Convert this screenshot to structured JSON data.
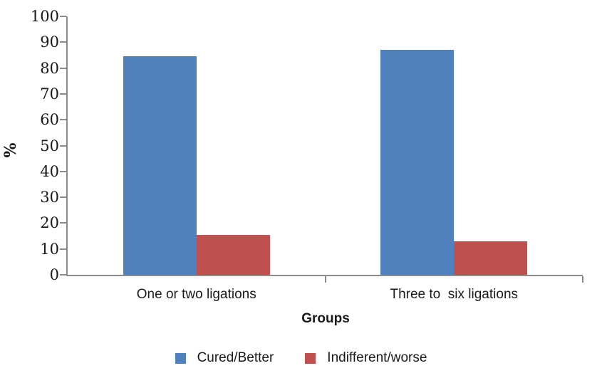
{
  "chart_data": {
    "type": "bar",
    "title": "",
    "categories": [
      "One or two ligations",
      "Three to  six ligations"
    ],
    "series": [
      {
        "name": "Cured/Better",
        "color": "#4F81BD",
        "values": [
          84.5,
          87.0
        ]
      },
      {
        "name": "Indifferent/worse",
        "color": "#C0504D",
        "values": [
          15.5,
          13.0
        ]
      }
    ],
    "xlabel": "Groups",
    "ylabel": "%",
    "ylim": [
      0,
      100
    ],
    "yticks": [
      0,
      10,
      20,
      30,
      40,
      50,
      60,
      70,
      80,
      90,
      100
    ],
    "grid": false,
    "legend_position": "bottom",
    "axis_color": "#8C8C8C",
    "text_color": "#1A1A1A"
  }
}
